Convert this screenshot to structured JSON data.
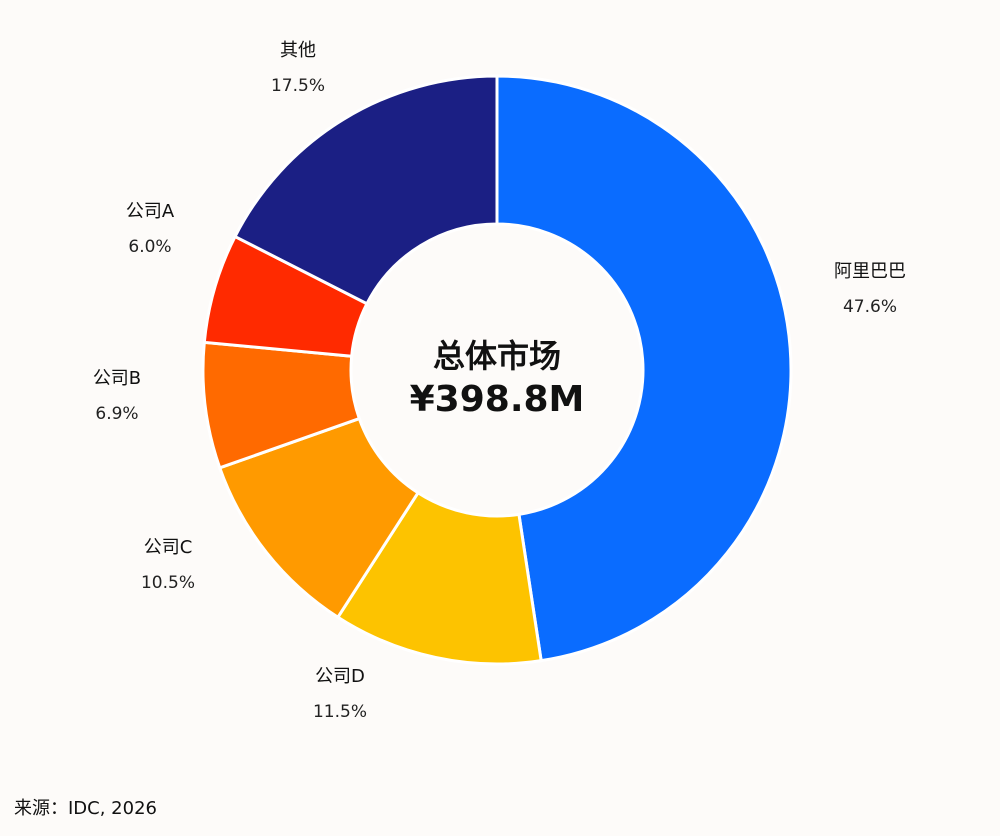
{
  "chart_data": {
    "type": "pie",
    "center_title": "总体市场",
    "center_value": "¥398.8M",
    "slices": [
      {
        "name": "阿里巴巴",
        "value": 47.6,
        "label": "47.6%",
        "color": "#0a6cff"
      },
      {
        "name": "公司D",
        "value": 11.5,
        "label": "11.5%",
        "color": "#fdc300"
      },
      {
        "name": "公司C",
        "value": 10.5,
        "label": "10.5%",
        "color": "#ff9a00"
      },
      {
        "name": "公司B",
        "value": 6.9,
        "label": "6.9%",
        "color": "#ff6a00"
      },
      {
        "name": "公司A",
        "value": 6.0,
        "label": "6.0%",
        "color": "#ff2a00"
      },
      {
        "name": "其他",
        "value": 17.5,
        "label": "17.5%",
        "color": "#1b1f84"
      }
    ]
  },
  "source": "来源：IDC, 2026"
}
